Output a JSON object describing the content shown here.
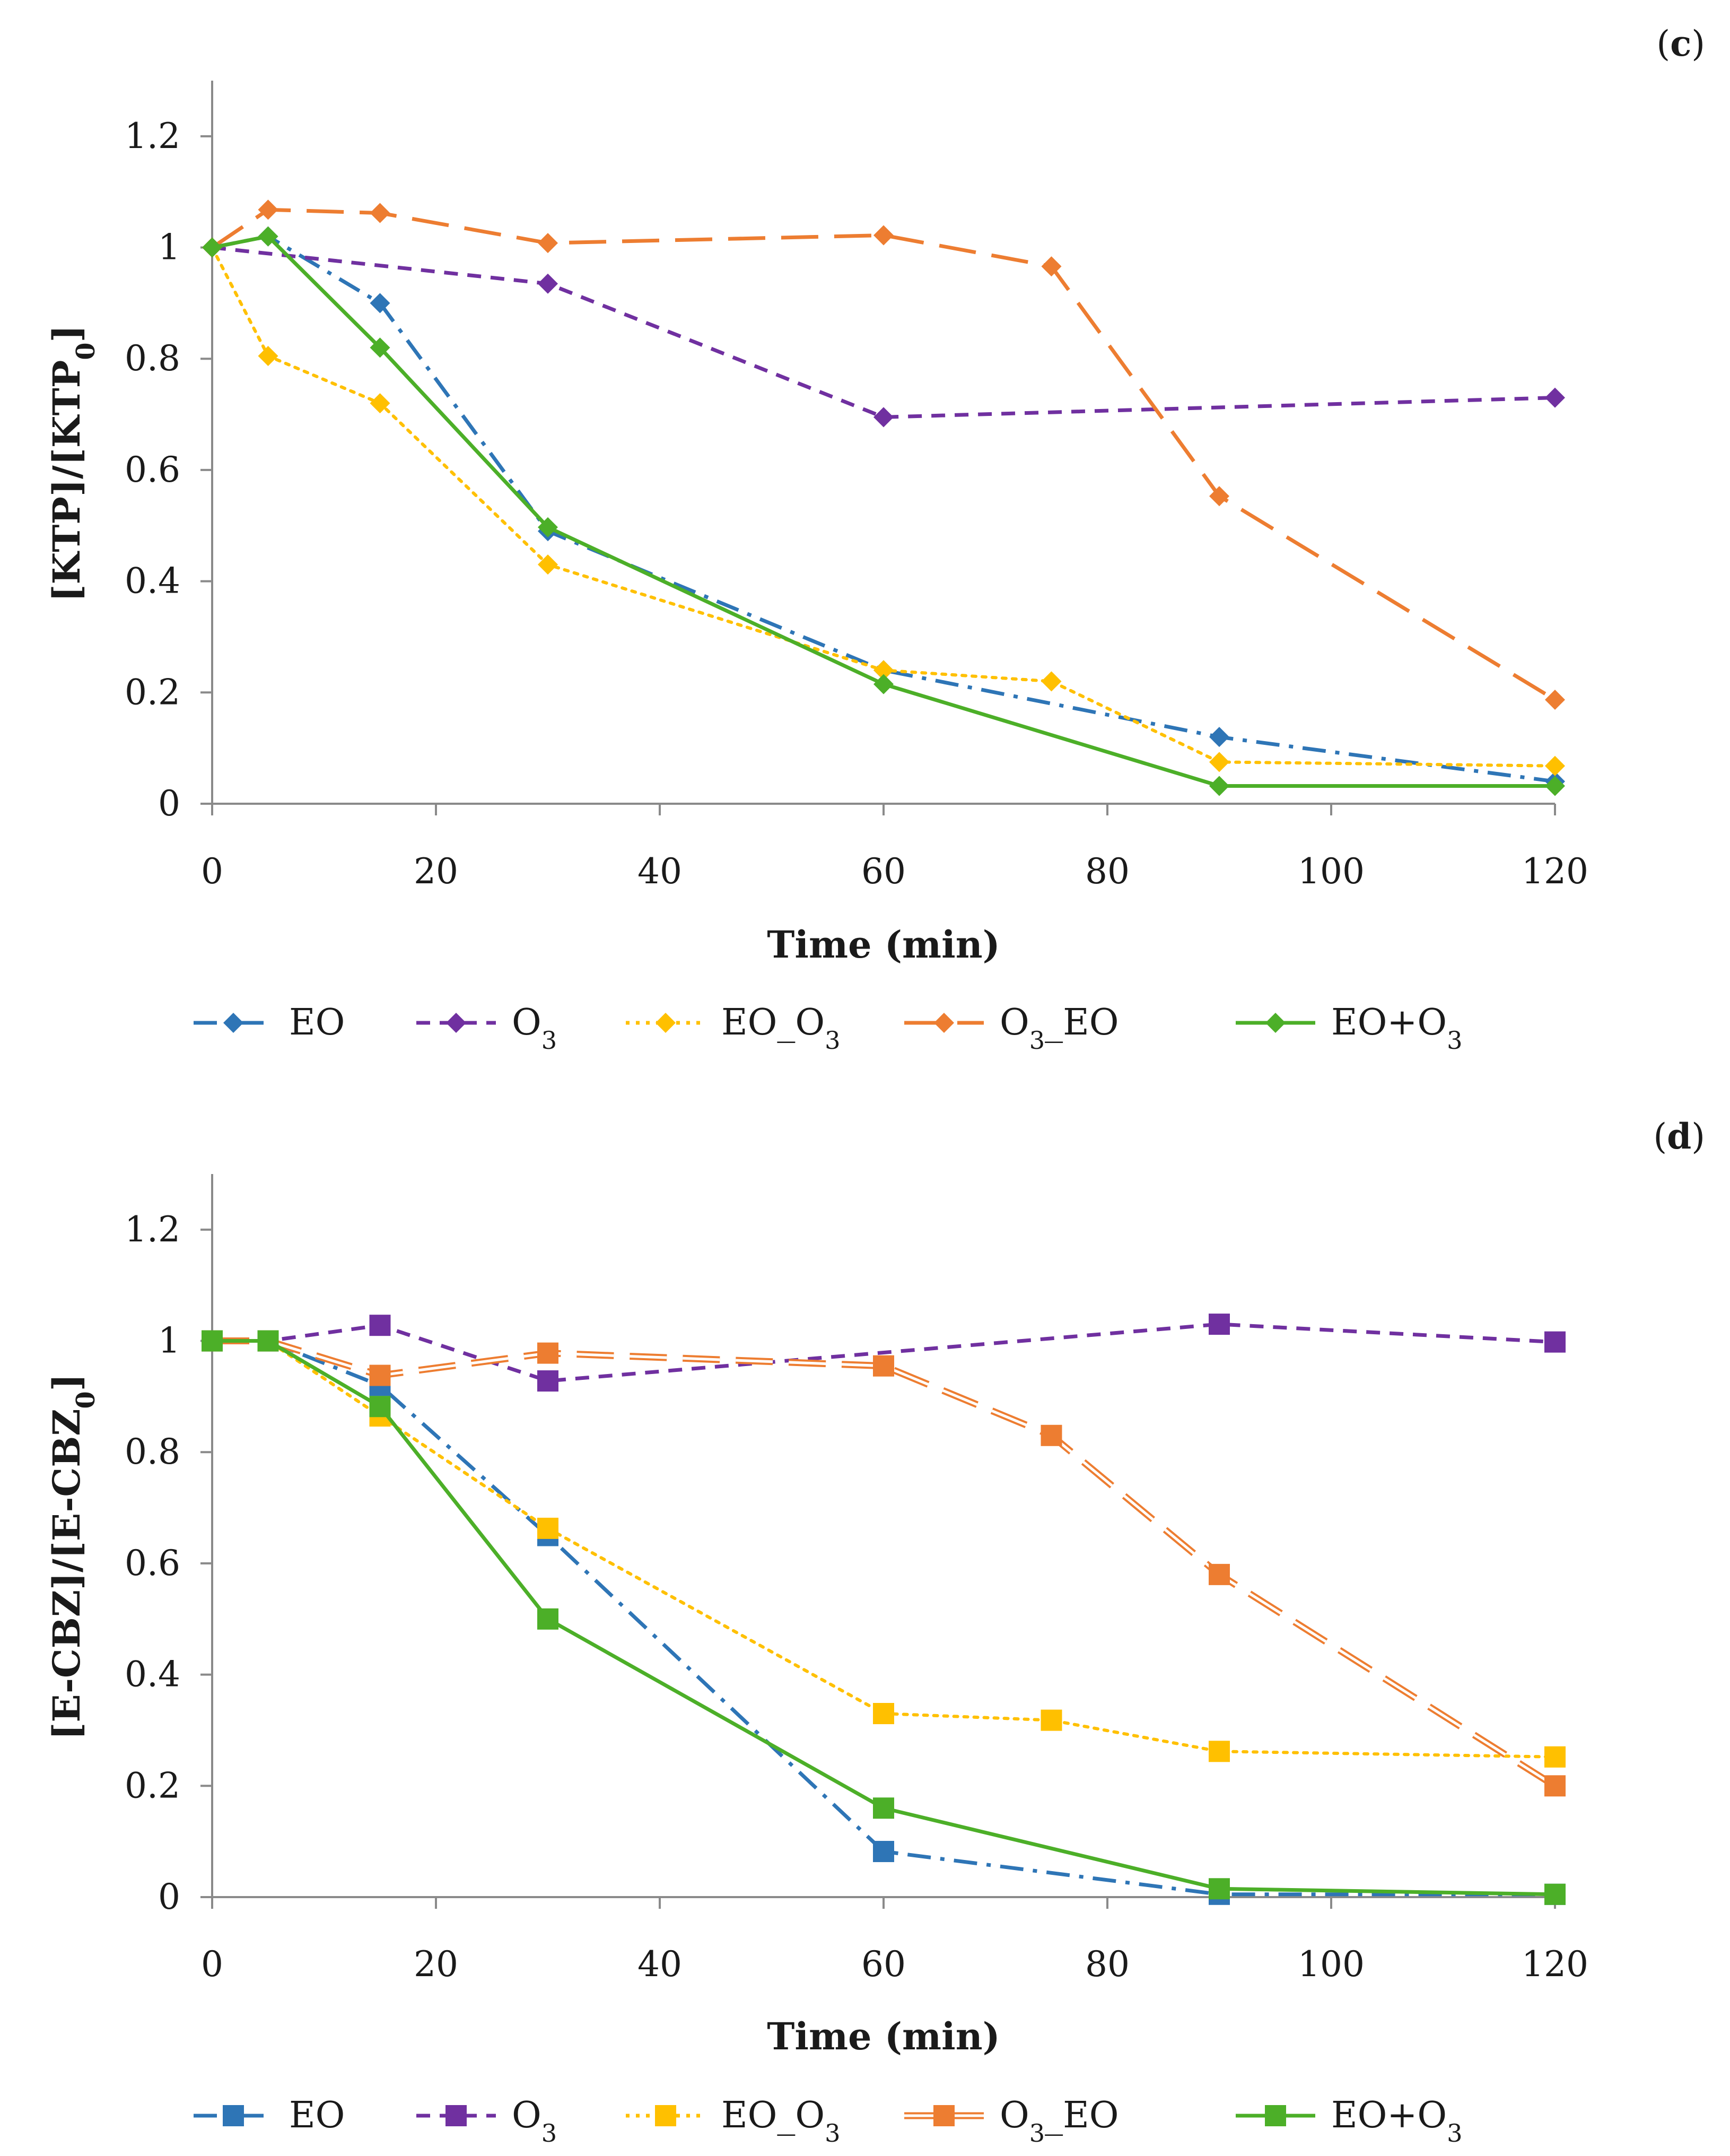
{
  "colors": {
    "EO": "#2e75b6",
    "O3": "#7030a0",
    "EO_O3": "#ffc000",
    "O3_EO": "#ed7d31",
    "EO+O3": "#4caf28",
    "axis": "#8a8a8a",
    "text": "#1a1a1a"
  },
  "chart_data": [
    {
      "type": "line",
      "panel_label": "(c)",
      "xlabel": "Time (min)",
      "ylabel": "[KTP]/[KTP0]",
      "ylabel_parts": {
        "main": "[KTP]/[KTP",
        "sub": "0",
        "end": "]"
      },
      "xlim": [
        0,
        120
      ],
      "ylim": [
        0,
        1.3
      ],
      "xticks": [
        0,
        20,
        40,
        60,
        80,
        100,
        120
      ],
      "yticks": [
        0,
        0.2,
        0.4,
        0.6,
        0.8,
        1,
        1.2
      ],
      "ytick_labels": [
        "0",
        "0.2",
        "0.4",
        "0.6",
        "0.8",
        "1",
        "1.2"
      ],
      "marker": "diamond",
      "series": [
        {
          "key": "EO",
          "name": "EO",
          "legend": {
            "main": "EO",
            "sub": "",
            "end": ""
          },
          "style": "dashdot",
          "x": [
            0,
            5,
            15,
            30,
            60,
            90,
            120
          ],
          "y": [
            1.0,
            1.02,
            0.9,
            0.49,
            0.24,
            0.12,
            0.04
          ]
        },
        {
          "key": "O3",
          "name": "O3",
          "legend": {
            "main": "O",
            "sub": "3",
            "end": ""
          },
          "style": "dash",
          "x": [
            0,
            30,
            60,
            120
          ],
          "y": [
            1.0,
            0.935,
            0.695,
            0.73
          ]
        },
        {
          "key": "EO_O3",
          "name": "EO_O3",
          "legend": {
            "main": "EO_O",
            "sub": "3",
            "end": ""
          },
          "style": "dot",
          "x": [
            0,
            5,
            15,
            30,
            60,
            75,
            90,
            120
          ],
          "y": [
            1.0,
            0.805,
            0.72,
            0.43,
            0.24,
            0.22,
            0.075,
            0.068
          ]
        },
        {
          "key": "O3_EO",
          "name": "O3_EO",
          "legend": {
            "main": "O",
            "sub": "3",
            "end": "_EO"
          },
          "style": "longdash",
          "x": [
            0,
            5,
            15,
            30,
            60,
            75,
            90,
            120
          ],
          "y": [
            1.0,
            1.068,
            1.062,
            1.008,
            1.022,
            0.966,
            0.553,
            0.187
          ]
        },
        {
          "key": "EO+O3",
          "name": "EO+O3",
          "legend": {
            "main": "EO+O",
            "sub": "3",
            "end": ""
          },
          "style": "solid",
          "x": [
            0,
            5,
            15,
            30,
            60,
            90,
            120
          ],
          "y": [
            1.0,
            1.02,
            0.82,
            0.497,
            0.215,
            0.032,
            0.032
          ]
        }
      ]
    },
    {
      "type": "line",
      "panel_label": "(d)",
      "xlabel": "Time (min)",
      "ylabel": "[E-CBZ]/[E-CBZ0]",
      "ylabel_parts": {
        "main": "[E-CBZ]/[E-CBZ",
        "sub": "0",
        "end": "]"
      },
      "xlim": [
        0,
        120
      ],
      "ylim": [
        0,
        1.3
      ],
      "xticks": [
        0,
        20,
        40,
        60,
        80,
        100,
        120
      ],
      "yticks": [
        0,
        0.2,
        0.4,
        0.6,
        0.8,
        1,
        1.2
      ],
      "ytick_labels": [
        "0",
        "0.2",
        "0.4",
        "0.6",
        "0.8",
        "1",
        "1.2"
      ],
      "marker": "square",
      "series": [
        {
          "key": "EO",
          "name": "EO",
          "legend": {
            "main": "EO",
            "sub": "",
            "end": ""
          },
          "style": "dashdot",
          "x": [
            0,
            5,
            15,
            30,
            60,
            90,
            120
          ],
          "y": [
            1.0,
            1.0,
            0.92,
            0.65,
            0.082,
            0.005,
            0.005
          ]
        },
        {
          "key": "O3",
          "name": "O3",
          "legend": {
            "main": "O",
            "sub": "3",
            "end": ""
          },
          "style": "dash",
          "x": [
            0,
            5,
            15,
            30,
            90,
            120
          ],
          "y": [
            1.0,
            1.0,
            1.028,
            0.928,
            1.03,
            0.998
          ]
        },
        {
          "key": "EO_O3",
          "name": "EO_O3",
          "legend": {
            "main": "EO_O",
            "sub": "3",
            "end": ""
          },
          "style": "dot",
          "x": [
            0,
            5,
            15,
            30,
            60,
            75,
            90,
            120
          ],
          "y": [
            1.0,
            1.0,
            0.865,
            0.663,
            0.33,
            0.318,
            0.262,
            0.252
          ]
        },
        {
          "key": "O3_EO",
          "name": "O3_EO",
          "legend": {
            "main": "O",
            "sub": "3",
            "end": "_EO"
          },
          "style": "doublelongdash",
          "x": [
            0,
            5,
            15,
            30,
            60,
            75,
            90,
            120
          ],
          "y": [
            1.0,
            1.0,
            0.938,
            0.978,
            0.955,
            0.83,
            0.58,
            0.2
          ]
        },
        {
          "key": "EO+O3",
          "name": "EO+O3",
          "legend": {
            "main": "EO+O",
            "sub": "3",
            "end": ""
          },
          "style": "solid",
          "x": [
            0,
            5,
            15,
            30,
            60,
            90,
            120
          ],
          "y": [
            1.0,
            1.0,
            0.882,
            0.5,
            0.16,
            0.015,
            0.005
          ]
        }
      ]
    }
  ]
}
